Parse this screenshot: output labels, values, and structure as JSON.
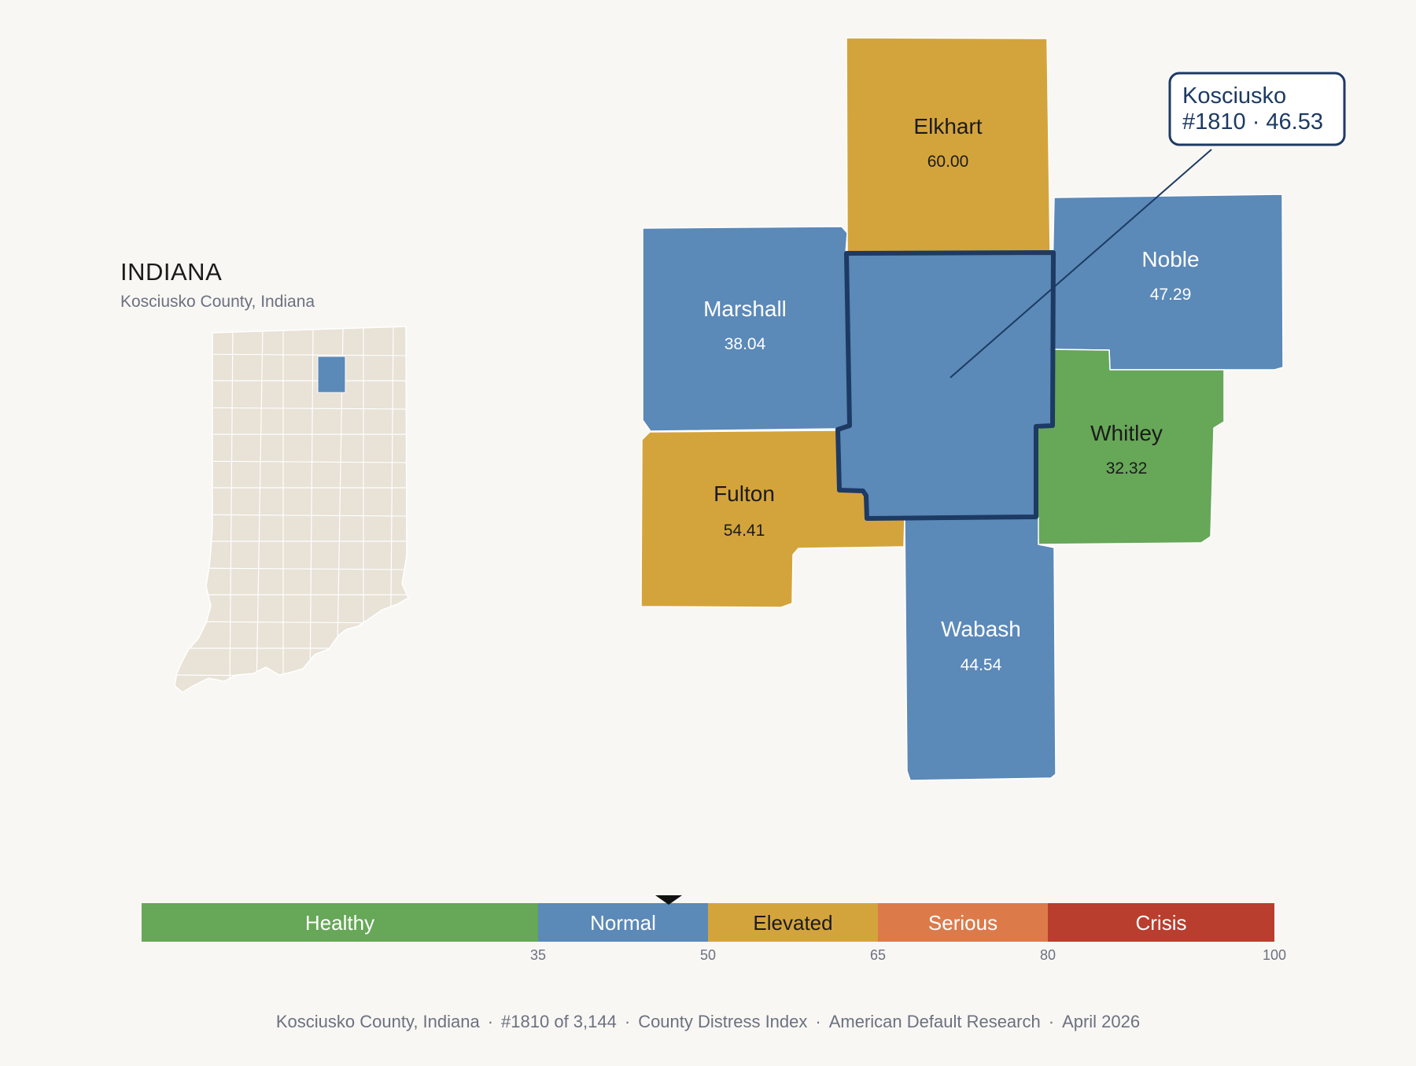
{
  "inset": {
    "state_name": "INDIANA",
    "subtitle": "Kosciusko County, Indiana",
    "base_color": "#e8e2d7",
    "highlight_color": "#5b89b8"
  },
  "counties": [
    {
      "name": "Elkhart",
      "value": "60.00",
      "category": "Elevated",
      "color": "#d4a43c",
      "text_color": "#1b1b1b"
    },
    {
      "name": "Marshall",
      "value": "38.04",
      "category": "Normal",
      "color": "#5b89b8",
      "text_color": "#ffffff"
    },
    {
      "name": "Noble",
      "value": "47.29",
      "category": "Normal",
      "color": "#5b89b8",
      "text_color": "#ffffff"
    },
    {
      "name": "Whitley",
      "value": "32.32",
      "category": "Healthy",
      "color": "#67a758",
      "text_color": "#1b1b1b"
    },
    {
      "name": "Fulton",
      "value": "54.41",
      "category": "Elevated",
      "color": "#d4a43c",
      "text_color": "#1b1b1b"
    },
    {
      "name": "Wabash",
      "value": "44.54",
      "category": "Normal",
      "color": "#5b89b8",
      "text_color": "#ffffff"
    }
  ],
  "focus": {
    "name": "Kosciusko",
    "detail": "#1810 · 46.53",
    "value": 46.53,
    "fill": "#5b89b8",
    "outline": "#1d3a63"
  },
  "scale": {
    "min": 0,
    "max": 100,
    "marker_value": 46.53,
    "bands": [
      {
        "label": "Healthy",
        "from": 0,
        "to": 35,
        "color": "#67a758",
        "text_color": "#ffffff"
      },
      {
        "label": "Normal",
        "from": 35,
        "to": 50,
        "color": "#5b89b8",
        "text_color": "#ffffff"
      },
      {
        "label": "Elevated",
        "from": 50,
        "to": 65,
        "color": "#d4a43c",
        "text_color": "#1b1b1b"
      },
      {
        "label": "Serious",
        "from": 65,
        "to": 80,
        "color": "#dc7a4a",
        "text_color": "#ffffff"
      },
      {
        "label": "Crisis",
        "from": 80,
        "to": 100,
        "color": "#b93e2e",
        "text_color": "#ffffff"
      }
    ],
    "ticks": [
      "35",
      "50",
      "65",
      "80",
      "100"
    ]
  },
  "footer": {
    "county": "Kosciusko County, Indiana",
    "rank": "#1810 of 3,144",
    "index": "County Distress Index",
    "source": "American Default Research",
    "date": "April 2026"
  }
}
